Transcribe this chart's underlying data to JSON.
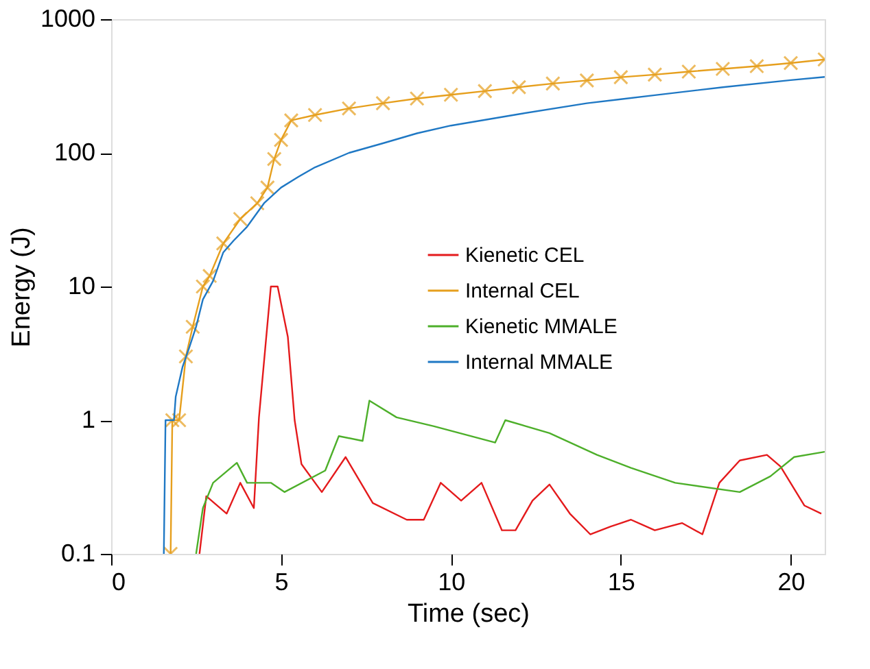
{
  "chart_data": {
    "type": "line",
    "xlabel": "Time (sec)",
    "ylabel": "Energy (J)",
    "log": "y",
    "xlim": [
      0,
      21
    ],
    "xticks": [
      0,
      5,
      10,
      15,
      20
    ],
    "ylim": [
      0.1,
      1000
    ],
    "yticks": [
      0.1,
      1,
      10,
      100,
      1000
    ],
    "grid": false,
    "legend": "right",
    "line_style": "solid",
    "series": [
      {
        "name": "Kienetic CEL",
        "color": "#e41a1c",
        "marker": "none",
        "x": [
          2.6,
          2.8,
          3.4,
          3.8,
          4.2,
          4.35,
          4.7,
          4.9,
          5.2,
          5.4,
          5.6,
          6.2,
          6.9,
          7.7,
          8.7,
          9.2,
          9.7,
          10.3,
          10.9,
          11.5,
          11.9,
          12.4,
          12.9,
          13.5,
          14.1,
          14.7,
          15.3,
          16.0,
          16.8,
          17.4,
          17.9,
          18.5,
          19.3,
          19.7,
          20.4,
          20.9
        ],
        "values": [
          0.1,
          0.27,
          0.2,
          0.34,
          0.22,
          1.05,
          10,
          10,
          4.2,
          1.0,
          0.47,
          0.29,
          0.53,
          0.24,
          0.18,
          0.18,
          0.34,
          0.25,
          0.34,
          0.15,
          0.15,
          0.25,
          0.33,
          0.2,
          0.14,
          0.16,
          0.18,
          0.15,
          0.17,
          0.14,
          0.34,
          0.5,
          0.55,
          0.45,
          0.23,
          0.2
        ]
      },
      {
        "name": "Internal CEL",
        "color": "#e69f1d",
        "marker": "cross",
        "x": [
          1.75,
          1.8,
          2.0,
          2.2,
          2.4,
          2.7,
          2.9,
          3.3,
          3.8,
          4.3,
          4.6,
          4.8,
          5.0,
          5.3,
          6,
          7,
          8,
          9,
          10,
          11,
          12,
          13,
          14,
          15,
          16,
          17,
          18,
          19,
          20,
          21
        ],
        "values": [
          0.1,
          1,
          1,
          3,
          5,
          10,
          12,
          21,
          32,
          42,
          55,
          90,
          125,
          175,
          192,
          215,
          235,
          255,
          272,
          290,
          310,
          330,
          348,
          368,
          385,
          405,
          425,
          445,
          470,
          500
        ]
      },
      {
        "name": "Kienetic MMALE",
        "color": "#4daf2a",
        "marker": "none",
        "x": [
          2.5,
          2.7,
          3.0,
          3.7,
          4.0,
          4.7,
          5.1,
          6.3,
          6.7,
          7.4,
          7.6,
          8.4,
          9.5,
          11.3,
          11.6,
          12.9,
          14.3,
          15.3,
          16.6,
          18.5,
          19.4,
          20.1,
          21
        ],
        "values": [
          0.1,
          0.22,
          0.34,
          0.48,
          0.34,
          0.34,
          0.29,
          0.42,
          0.76,
          0.7,
          1.4,
          1.05,
          0.9,
          0.68,
          1.0,
          0.8,
          0.55,
          0.44,
          0.34,
          0.29,
          0.38,
          0.53,
          0.58
        ]
      },
      {
        "name": "Internal MMALE",
        "color": "#1f78c4",
        "marker": "none",
        "x": [
          1.55,
          1.6,
          1.85,
          1.9,
          2.1,
          2.3,
          2.5,
          2.7,
          3.0,
          3.3,
          3.6,
          4.0,
          4.5,
          5.0,
          5.5,
          6,
          7,
          8,
          9,
          10,
          12,
          14,
          15,
          16,
          18,
          20,
          21
        ],
        "values": [
          0.1,
          1,
          1,
          1.5,
          2.5,
          3.5,
          5,
          8,
          11,
          18,
          22,
          28,
          42,
          55,
          66,
          78,
          100,
          118,
          140,
          160,
          195,
          235,
          252,
          270,
          310,
          350,
          370
        ]
      }
    ]
  }
}
